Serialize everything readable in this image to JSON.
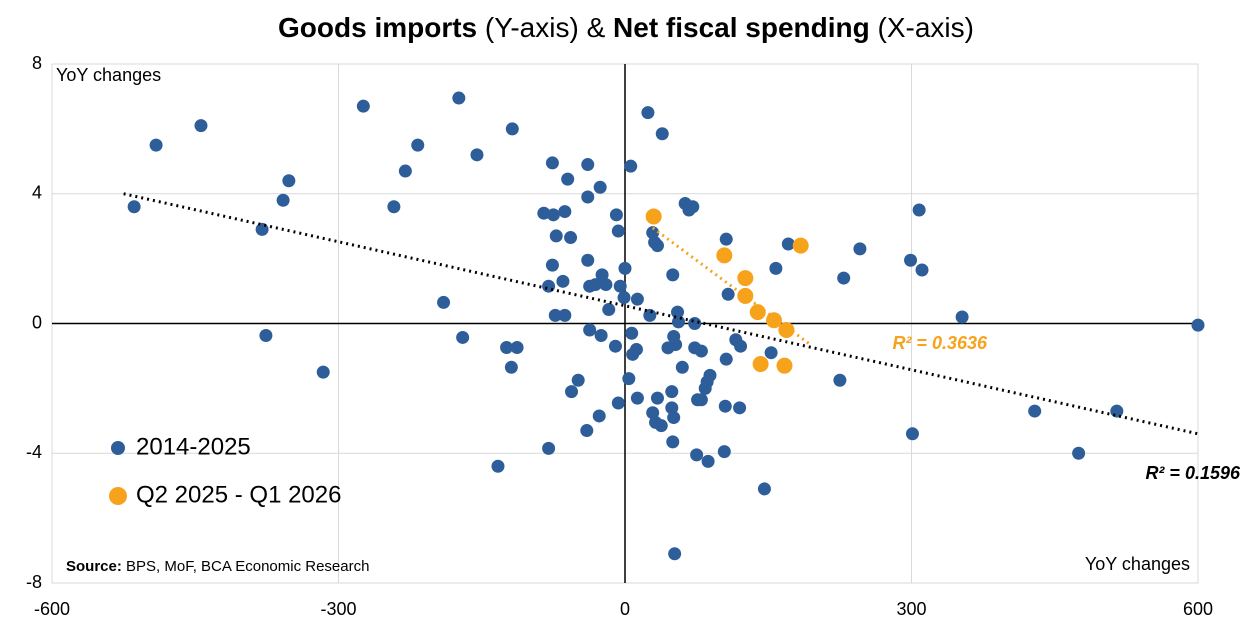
{
  "chart_data": {
    "type": "scatter",
    "title_parts": [
      {
        "text": "Goods imports",
        "bold": true
      },
      {
        "text": " (Y-axis) & ",
        "bold": false
      },
      {
        "text": "Net fiscal spending",
        "bold": true
      },
      {
        "text": " (X-axis)",
        "bold": false
      }
    ],
    "y_label": "YoY changes",
    "x_label": "YoY changes",
    "source_parts": [
      {
        "text": "Source:",
        "bold": true
      },
      {
        "text": " BPS, MoF, BCA Economic Research",
        "bold": false
      }
    ],
    "xlim": [
      -600,
      600
    ],
    "ylim": [
      -8,
      8
    ],
    "xticks": [
      -600,
      -300,
      0,
      300,
      600
    ],
    "yticks": [
      -8,
      -4,
      0,
      4,
      8
    ],
    "grid": true,
    "legend": "lower left",
    "series": [
      {
        "name": "2014-2025",
        "color": "#2e5e99",
        "x": [
          -514,
          -491,
          -444,
          -376,
          -380,
          -358,
          -352,
          -316,
          -274,
          -242,
          -230,
          -217,
          -190,
          -174,
          -170,
          -155,
          -133,
          -124,
          -119,
          -118,
          -113,
          -85,
          -80,
          -80,
          -76,
          -76,
          -75,
          -73,
          -72,
          -65,
          -63,
          -63,
          -60,
          -57,
          -56,
          -49,
          -39,
          -39,
          -39,
          -40,
          -37,
          -37,
          -31,
          -27,
          -26,
          -25,
          -24,
          -20,
          -17,
          -10,
          -9,
          -7,
          -7,
          -5,
          -1,
          0,
          4,
          6,
          7,
          8,
          12,
          13,
          13,
          24,
          26,
          29,
          29,
          31,
          32,
          34,
          34,
          38,
          39,
          45,
          49,
          49,
          50,
          52,
          50,
          51,
          51,
          53,
          55,
          56,
          60,
          63,
          67,
          71,
          73,
          73,
          75,
          76,
          80,
          80,
          84,
          86,
          87,
          89,
          104,
          105,
          106,
          106,
          108,
          116,
          120,
          121,
          146,
          153,
          158,
          171,
          225,
          229,
          246,
          299,
          301,
          308,
          311,
          353,
          429,
          475,
          515,
          600
        ],
        "values": [
          3.6,
          5.5,
          6.1,
          -0.37,
          2.9,
          3.8,
          4.4,
          -1.5,
          6.7,
          3.6,
          4.7,
          5.5,
          0.65,
          6.95,
          -0.43,
          5.2,
          -4.4,
          -0.74,
          -1.35,
          6.0,
          -0.74,
          3.4,
          1.15,
          -3.85,
          4.95,
          1.8,
          3.35,
          0.25,
          2.7,
          1.3,
          3.45,
          0.25,
          4.45,
          2.65,
          -2.1,
          -1.75,
          1.95,
          4.9,
          3.9,
          -3.3,
          1.15,
          -0.2,
          1.2,
          -2.85,
          4.2,
          -0.37,
          1.5,
          1.2,
          0.43,
          -0.7,
          3.35,
          2.85,
          -2.45,
          1.15,
          0.8,
          1.7,
          -1.7,
          4.85,
          -0.3,
          -0.95,
          -0.8,
          0.75,
          -2.3,
          6.5,
          0.25,
          2.8,
          -2.75,
          2.5,
          -3.05,
          2.4,
          -2.3,
          -3.15,
          5.85,
          -0.75,
          -2.1,
          -2.6,
          -3.65,
          -7.1,
          1.5,
          -0.4,
          -2.9,
          -0.65,
          0.35,
          0.05,
          -1.35,
          3.7,
          3.5,
          3.6,
          0,
          -0.75,
          -4.05,
          -2.35,
          -0.85,
          -2.35,
          -2.0,
          -1.8,
          -4.25,
          -1.6,
          -3.95,
          -2.55,
          -1.1,
          2.6,
          0.9,
          -0.5,
          -2.6,
          -0.7,
          -5.1,
          -0.9,
          1.7,
          2.45,
          -1.75,
          1.4,
          2.3,
          1.95,
          -3.4,
          3.5,
          1.65,
          0.2,
          -2.7,
          -4.0,
          -2.7,
          -0.05
        ],
        "trendline": {
          "x": [
            -525,
            600
          ],
          "y": [
            4.0,
            -3.4
          ],
          "color": "#000000",
          "label": "R² = 0.1596"
        }
      },
      {
        "name": "Q2 2025 - Q1 2026",
        "color": "#f7a21b",
        "x": [
          30,
          104,
          126,
          126,
          139,
          142,
          156,
          167,
          169,
          184
        ],
        "values": [
          3.3,
          2.1,
          1.4,
          0.85,
          0.35,
          -1.25,
          0.1,
          -1.3,
          -0.2,
          2.4
        ],
        "trendline": {
          "x": [
            29,
            194
          ],
          "y": [
            2.95,
            -0.65
          ],
          "color": "#f7a21b",
          "label": "R² = 0.3636"
        }
      }
    ]
  }
}
